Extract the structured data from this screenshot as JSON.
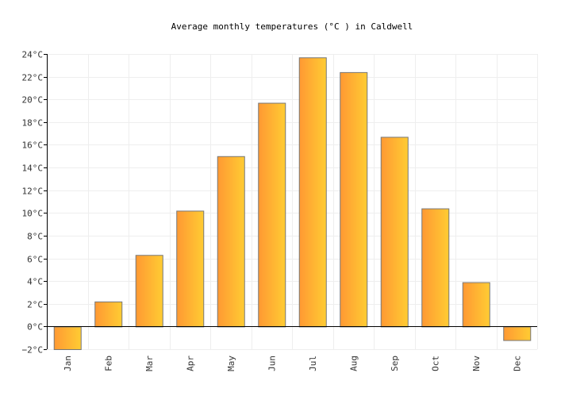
{
  "chart_data": {
    "type": "bar",
    "title": "Average monthly temperatures (°C ) in Caldwell",
    "categories": [
      "Jan",
      "Feb",
      "Mar",
      "Apr",
      "May",
      "Jun",
      "Jul",
      "Aug",
      "Sep",
      "Oct",
      "Nov",
      "Dec"
    ],
    "values": [
      -2.0,
      2.2,
      6.3,
      10.2,
      15.0,
      19.7,
      23.7,
      22.4,
      16.7,
      10.4,
      3.9,
      -1.2
    ],
    "ylim": [
      -2,
      24
    ],
    "yticks": [
      "−2°C",
      "0°C",
      "2°C",
      "4°C",
      "6°C",
      "8°C",
      "10°C",
      "12°C",
      "14°C",
      "16°C",
      "18°C",
      "20°C",
      "22°C",
      "24°C"
    ],
    "grid": true,
    "colors": {
      "bar_start": "#ff9933",
      "bar_end": "#ffcc33",
      "bar_stroke": "#777777",
      "grid": "#eeeeee"
    }
  }
}
